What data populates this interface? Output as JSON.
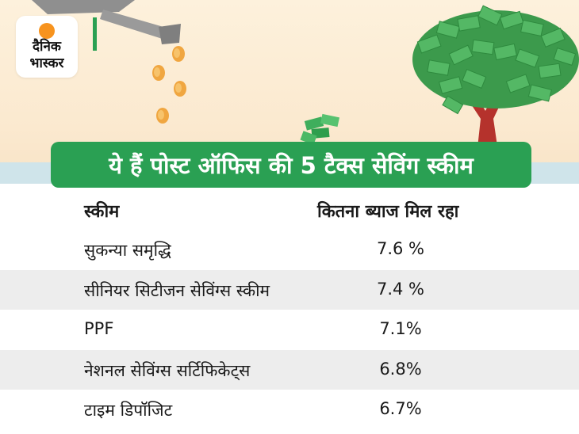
{
  "logo": {
    "line1": "दैनिक",
    "line2": "भास्कर"
  },
  "title": "ये हैं पोस्ट ऑफिस की 5 टैक्स सेविंग स्कीम",
  "table": {
    "headers": {
      "scheme": "स्कीम",
      "rate": "कितना ब्याज मिल रहा"
    },
    "rows": [
      {
        "scheme": "सुकन्या समृद्धि",
        "rate": "7.6 %"
      },
      {
        "scheme": "सीनियर सिटीजन सेविंग्स स्कीम",
        "rate": "7.4 %"
      },
      {
        "scheme": "PPF",
        "rate": "7.1%"
      },
      {
        "scheme": "नेशनल सेविंग्स सर्टिफिकेट्स",
        "rate": "6.8%"
      },
      {
        "scheme": "टाइम डिपॉजिट",
        "rate": "6.7%"
      }
    ]
  },
  "colors": {
    "accent_green": "#2aa053",
    "logo_orange": "#f7931e",
    "row_alt": "#ededed"
  },
  "icons": [
    "watering-can-icon",
    "coin-icon",
    "money-tree-icon",
    "money-plant-icon"
  ]
}
